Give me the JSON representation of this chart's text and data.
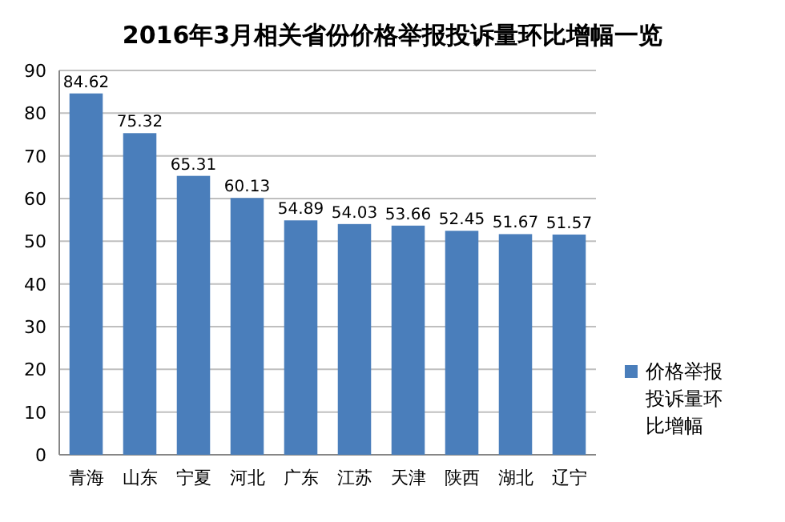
{
  "chart_data": {
    "type": "bar",
    "title": "2016年3月相关省份价格举报投诉量环比增幅一览",
    "categories": [
      "青海",
      "山东",
      "宁夏",
      "河北",
      "广东",
      "江苏",
      "天津",
      "陕西",
      "湖北",
      "辽宁"
    ],
    "series": [
      {
        "name": "价格举报投诉量环比增幅",
        "color": "#4a7ebb",
        "values": [
          84.62,
          75.32,
          65.31,
          60.13,
          54.89,
          54.03,
          53.66,
          52.45,
          51.67,
          51.57
        ]
      }
    ],
    "ylim": [
      0,
      90
    ],
    "yticks": [
      0,
      10,
      20,
      30,
      40,
      50,
      60,
      70,
      80,
      90
    ],
    "grid": "y",
    "legend": "right",
    "data_labels": true
  }
}
